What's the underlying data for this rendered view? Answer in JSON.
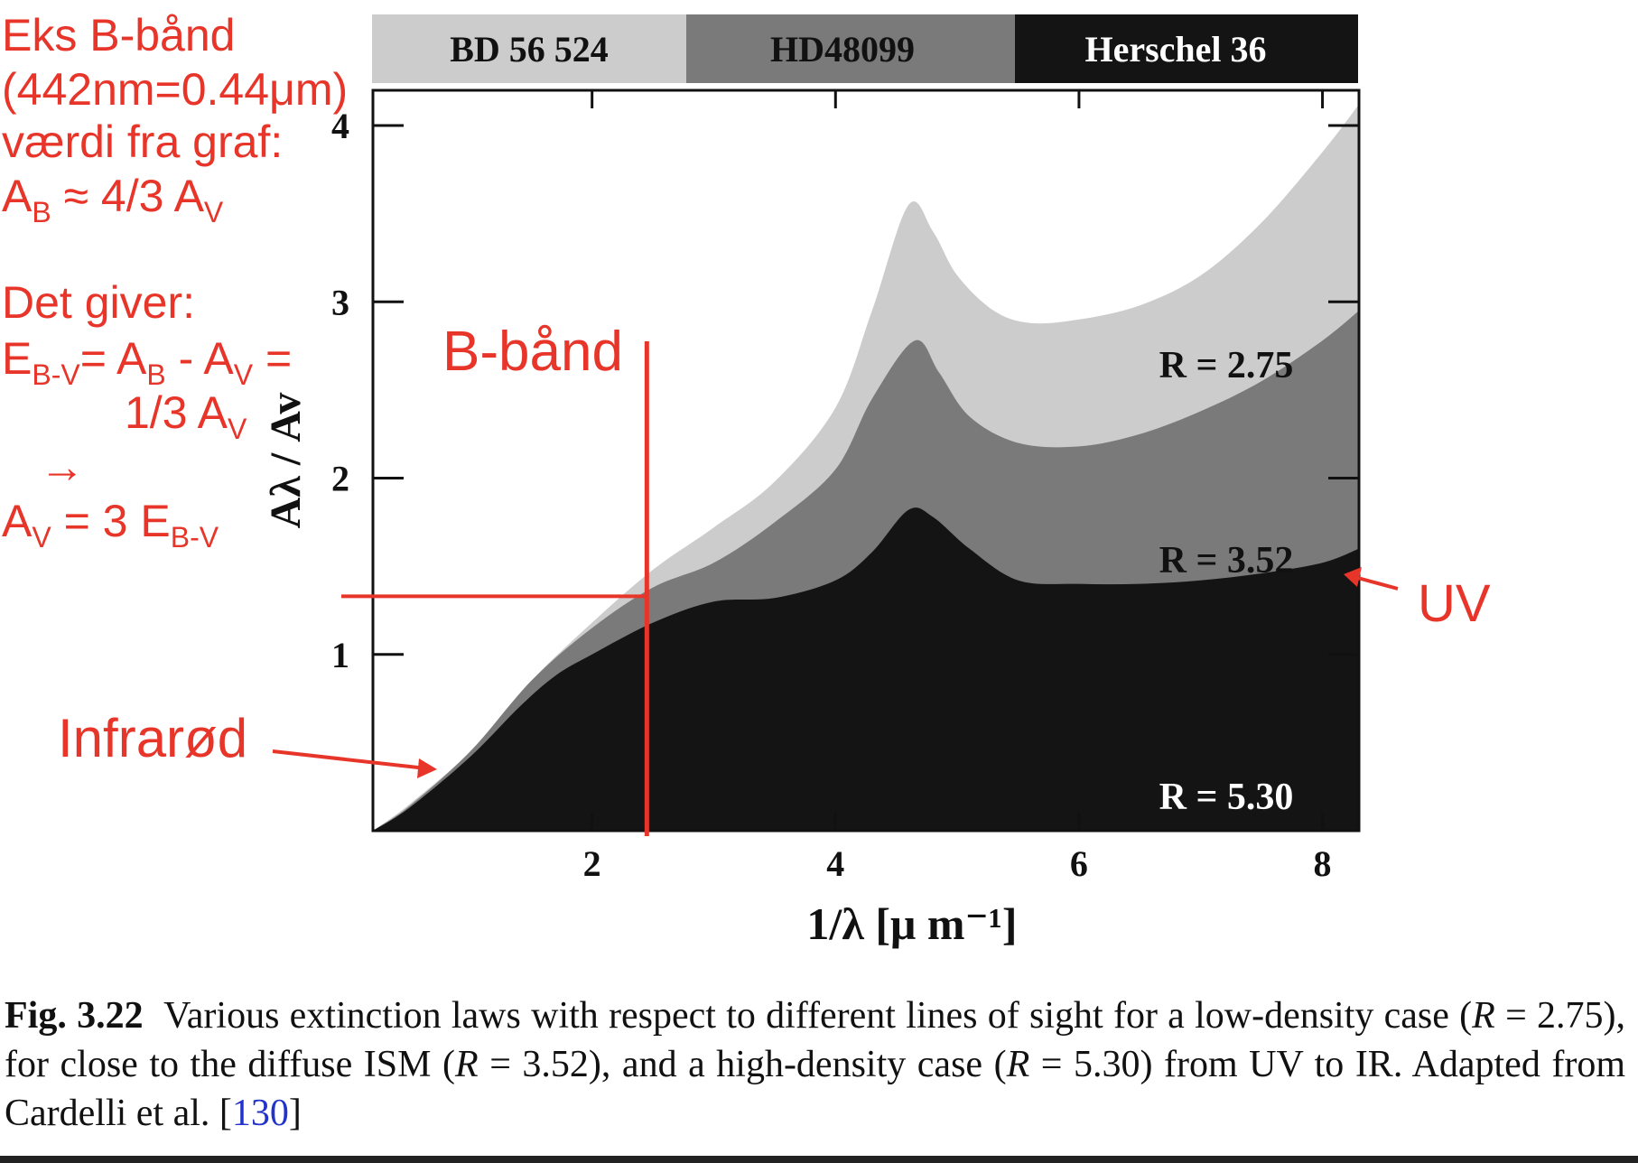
{
  "chart_data": {
    "type": "area",
    "title": "",
    "xlabel": "1/λ    [μ m⁻¹]",
    "ylabel": "Aλ / Av",
    "xlim": [
      0.2,
      8.3
    ],
    "ylim": [
      0,
      4.2
    ],
    "x_ticks": [
      2,
      4,
      6,
      8
    ],
    "y_ticks": [
      1,
      2,
      3,
      4
    ],
    "x_tick_labels": [
      "2",
      "4",
      "6",
      "8"
    ],
    "y_tick_labels": [
      "1",
      "2",
      "3",
      "4"
    ],
    "band_labels": [
      {
        "name": "BD 56 524",
        "color": "#cccccc",
        "text_color": "#111111"
      },
      {
        "name": "HD48099",
        "color": "#7a7a7a",
        "text_color": "#111111"
      },
      {
        "name": "Herschel 36",
        "color": "#141414",
        "text_color": "#ffffff"
      }
    ],
    "series": [
      {
        "name": "R = 2.75",
        "color": "#cccccc",
        "x": [
          0.2,
          0.5,
          1.0,
          1.5,
          2.0,
          2.5,
          3.0,
          3.5,
          4.0,
          4.3,
          4.6,
          4.8,
          5.0,
          5.3,
          5.6,
          6.0,
          6.5,
          7.0,
          7.5,
          8.0,
          8.3
        ],
        "values": [
          0.0,
          0.15,
          0.45,
          0.85,
          1.18,
          1.48,
          1.72,
          1.98,
          2.4,
          2.95,
          3.55,
          3.4,
          3.15,
          2.95,
          2.88,
          2.9,
          2.98,
          3.15,
          3.45,
          3.85,
          4.12
        ]
      },
      {
        "name": "R = 3.52",
        "color": "#7a7a7a",
        "x": [
          0.2,
          0.5,
          1.0,
          1.5,
          2.0,
          2.5,
          3.0,
          3.5,
          4.0,
          4.3,
          4.65,
          4.85,
          5.1,
          5.5,
          6.0,
          6.5,
          7.0,
          7.5,
          8.0,
          8.3
        ],
        "values": [
          0.0,
          0.14,
          0.45,
          0.85,
          1.15,
          1.38,
          1.52,
          1.75,
          2.05,
          2.45,
          2.78,
          2.6,
          2.35,
          2.2,
          2.18,
          2.25,
          2.38,
          2.55,
          2.78,
          2.95
        ]
      },
      {
        "name": "R = 5.30",
        "color": "#141414",
        "x": [
          0.2,
          0.5,
          1.0,
          1.4,
          1.7,
          2.0,
          2.5,
          3.0,
          3.5,
          4.0,
          4.3,
          4.6,
          4.8,
          5.1,
          5.5,
          6.0,
          6.5,
          7.0,
          7.5,
          8.0,
          8.3
        ],
        "values": [
          0.0,
          0.13,
          0.42,
          0.7,
          0.88,
          1.0,
          1.18,
          1.3,
          1.32,
          1.42,
          1.58,
          1.82,
          1.78,
          1.6,
          1.42,
          1.4,
          1.4,
          1.42,
          1.46,
          1.52,
          1.6
        ]
      }
    ],
    "curve_labels": [
      {
        "text": "R = 2.75",
        "x": 7.0,
        "y": 2.7
      },
      {
        "text": "R = 3.52",
        "x": 7.0,
        "y": 1.57
      },
      {
        "text": "R = 5.30",
        "x": 7.0,
        "y": 0.2
      }
    ],
    "annotations": {
      "b_band_x": 2.45,
      "b_band_y": 1.33,
      "b_band_label": "B-bånd",
      "infrared_label": "Infrarød",
      "uv_label": "UV"
    }
  },
  "notes": {
    "line1": "Eks B-bånd",
    "line2": "(442nm=0.44μm)",
    "line3": "værdi fra graf:",
    "line4_pre": "A",
    "line4_sub1": "B",
    "line4_mid": " ≈ 4/3 A",
    "line4_sub2": "V",
    "line5": "Det giver:",
    "line6_pre": "E",
    "line6_sub1": "B-V",
    "line6_mid1": "= A",
    "line6_sub2": "B",
    "line6_mid2": " - A",
    "line6_sub3": "V",
    "line6_end": " =",
    "line7_pre": "1/3 A",
    "line7_sub": "V",
    "arrow": "→",
    "line8_pre": "A",
    "line8_sub1": "V",
    "line8_mid": " = 3 E",
    "line8_sub2": "B-V"
  },
  "caption": {
    "label": "Fig. 3.22",
    "text1": "Various extinction laws with respect to different lines of sight for a low-density case (",
    "r": "R",
    "eq1": " = 2.75), for close to the diffuse ISM (",
    "eq2": " = 3.52), and a high-density case (",
    "eq3": " = 5.30) from UV to IR. Adapted from Cardelli et al. [",
    "ref": "130",
    "end": "]"
  },
  "colors": {
    "annotation_red": "#e8352a",
    "light_gray": "#cccccc",
    "mid_gray": "#7a7a7a",
    "dark": "#141414"
  }
}
